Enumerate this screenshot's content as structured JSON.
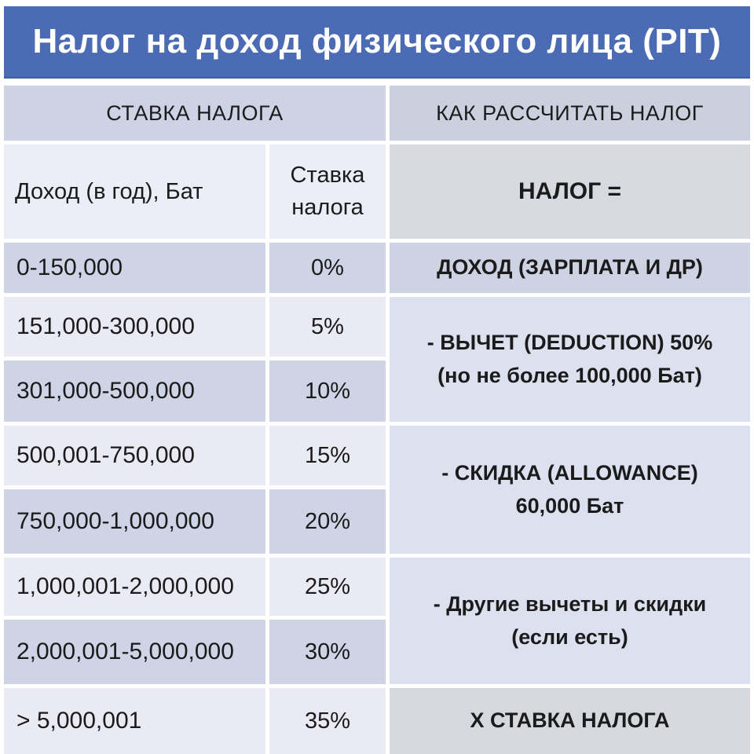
{
  "title": "Налог на доход физического лица (PIT)",
  "left_section": {
    "header": "СТАВКА НАЛОГА",
    "income_header": "Доход (в год), Бат",
    "rate_header_line1": "Ставка",
    "rate_header_line2": "налога",
    "rows": [
      {
        "income": "0-150,000",
        "rate": "0%"
      },
      {
        "income": "151,000-300,000",
        "rate": "5%"
      },
      {
        "income": "301,000-500,000",
        "rate": "10%"
      },
      {
        "income": "500,001-750,000",
        "rate": "15%"
      },
      {
        "income": "750,000-1,000,000",
        "rate": "20%"
      },
      {
        "income": "1,000,001-2,000,000",
        "rate": "25%"
      },
      {
        "income": "2,000,001-5,000,000",
        "rate": "30%"
      },
      {
        "income": "> 5,000,001",
        "rate": "35%"
      }
    ]
  },
  "right_section": {
    "header": "КАК РАССЧИТАТЬ НАЛОГ",
    "formula_header": "НАЛОГ =",
    "steps": [
      {
        "lines": [
          "ДОХОД (ЗАРПЛАТА И ДР)"
        ]
      },
      {
        "lines": [
          "- ВЫЧЕТ (DEDUCTION) 50%",
          "(но не более 100,000 Бат)"
        ]
      },
      {
        "lines": [
          "- СКИДКА (ALLOWANCE)",
          "60,000 Бат"
        ]
      },
      {
        "lines": [
          "- Другие вычеты и скидки",
          "(если есть)"
        ]
      },
      {
        "lines": [
          "Х СТАВКА НАЛОГА"
        ]
      }
    ]
  },
  "colors": {
    "title_bar": "#4b6bb4",
    "title_text": "#ffffff",
    "header_band": "#cdd2e4",
    "subheader_band": "#eceef7",
    "row_dark": "#ced3e6",
    "row_light": "#e9eaf4",
    "calc_header_cell": "#d7dae1",
    "calc_step_cell": "#dde1ef",
    "final_step_cell": "#d5d8dd",
    "body_text": "#1b1b1b"
  }
}
